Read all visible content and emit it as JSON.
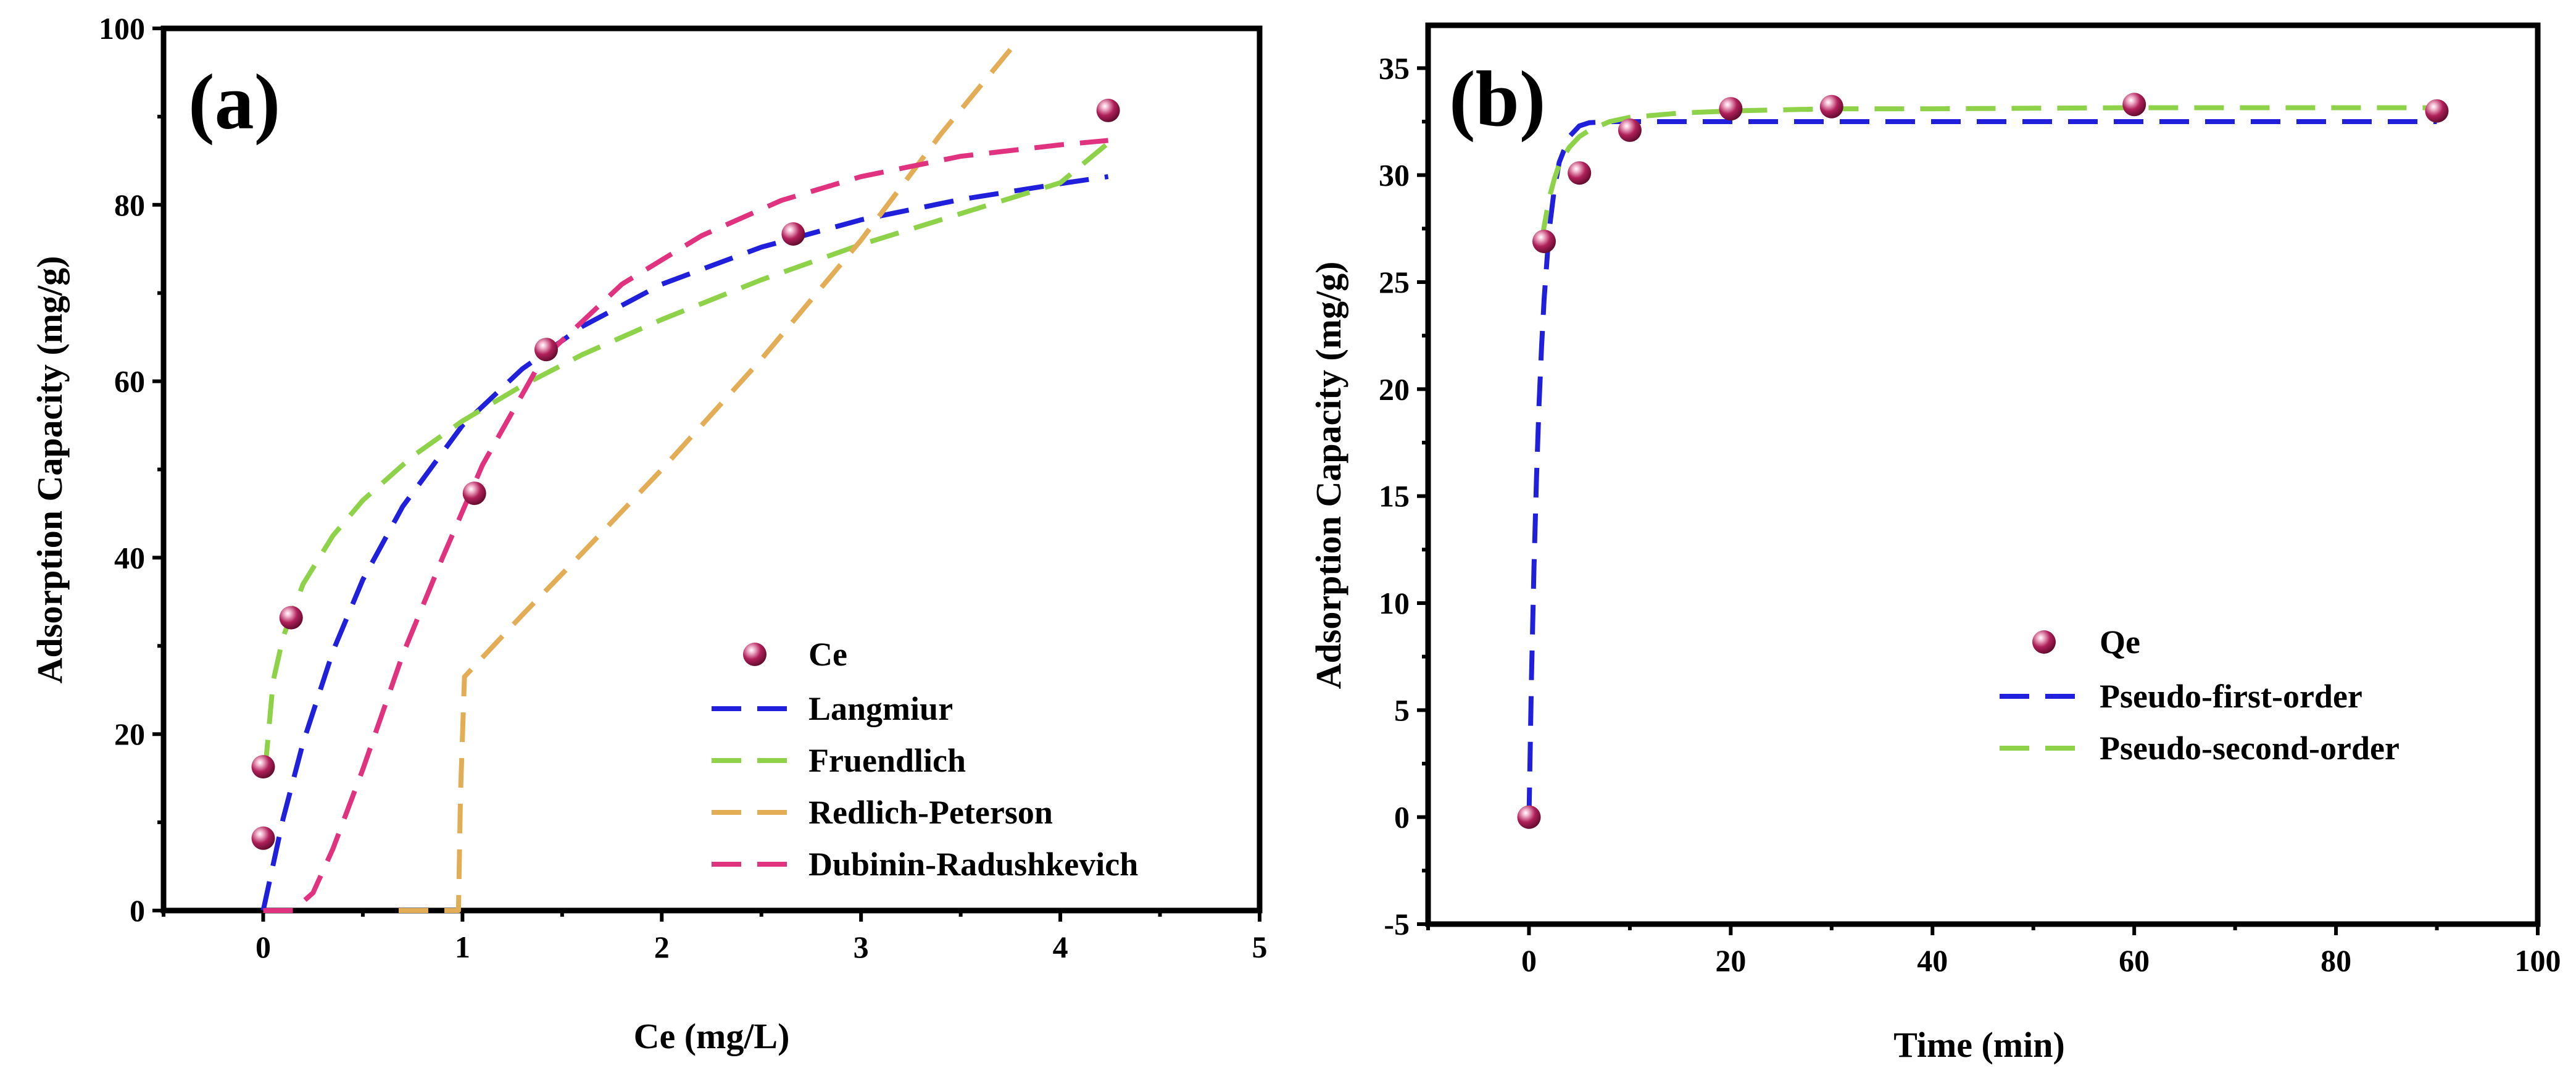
{
  "chart_data": [
    {
      "panel_label": "(a)",
      "type": "scatter",
      "title": "",
      "xlabel": "Ce (mg/L)",
      "ylabel": "Adsorption Capacity (mg/g)",
      "xlim": [
        -0.5,
        5
      ],
      "ylim": [
        0,
        100
      ],
      "x_ticks": [
        0,
        1,
        2,
        3,
        4,
        5
      ],
      "y_ticks": [
        0,
        20,
        40,
        60,
        80,
        100
      ],
      "grid": false,
      "legend_position": "bottom-right",
      "points": {
        "name": "Ce",
        "color": "#9e1b4d",
        "x": [
          0.0,
          0.0,
          0.14,
          1.06,
          1.42,
          2.66,
          4.24
        ],
        "y": [
          8.2,
          16.3,
          33.2,
          47.3,
          63.6,
          76.7,
          90.7
        ]
      },
      "series": [
        {
          "name": "Langmiur",
          "color": "#1f1fdc",
          "x": [
            0.0,
            0.1,
            0.2,
            0.35,
            0.5,
            0.7,
            1.0,
            1.3,
            1.6,
            2.0,
            2.5,
            3.0,
            3.5,
            4.0,
            4.24
          ],
          "y": [
            0.0,
            10.4,
            19.0,
            29.4,
            37.5,
            45.8,
            55.0,
            61.4,
            66.2,
            71.0,
            75.2,
            78.3,
            80.6,
            82.4,
            83.2
          ]
        },
        {
          "name": "Fruendlich",
          "color": "#8ed24a",
          "x": [
            0.01,
            0.05,
            0.1,
            0.2,
            0.35,
            0.5,
            0.75,
            1.0,
            1.3,
            1.6,
            2.0,
            2.5,
            3.0,
            3.5,
            4.0,
            4.24
          ],
          "y": [
            16.0,
            26.0,
            31.0,
            37.0,
            42.5,
            46.5,
            51.5,
            55.5,
            59.5,
            63.0,
            67.0,
            71.5,
            75.5,
            79.0,
            82.5,
            87.0
          ]
        },
        {
          "name": "Redlich-Peterson",
          "color": "#e2ad55",
          "x": [
            0.68,
            0.85,
            0.98,
            0.99,
            1.01,
            1.3,
            1.6,
            2.0,
            2.5,
            3.0,
            3.4,
            3.8
          ],
          "y": [
            0.0,
            0.0,
            0.0,
            13.0,
            26.5,
            33.5,
            40.5,
            50.0,
            62.5,
            76.0,
            88.0,
            99.0
          ]
        },
        {
          "name": "Dubinin-Radushkevich",
          "color": "#e0327e",
          "x": [
            0.0,
            0.15,
            0.25,
            0.35,
            0.5,
            0.7,
            0.9,
            1.1,
            1.4,
            1.8,
            2.2,
            2.6,
            3.0,
            3.5,
            4.0,
            4.24
          ],
          "y": [
            0.0,
            0.0,
            2.0,
            7.0,
            16.0,
            29.0,
            40.0,
            50.5,
            62.5,
            71.0,
            76.5,
            80.5,
            83.2,
            85.5,
            86.8,
            87.3
          ]
        }
      ]
    },
    {
      "panel_label": "(b)",
      "type": "scatter",
      "title": "",
      "xlabel": "Time (min)",
      "ylabel": "Adsorption Capacity (mg/g)",
      "xlim": [
        -10,
        100
      ],
      "ylim": [
        -5,
        37
      ],
      "x_ticks": [
        0,
        20,
        40,
        60,
        80,
        100
      ],
      "y_ticks": [
        -5,
        0,
        5,
        10,
        15,
        20,
        25,
        30,
        35
      ],
      "grid": false,
      "legend_position": "bottom-right",
      "points": {
        "name": "Qe",
        "color": "#9e1b4d",
        "x": [
          0,
          1.5,
          5,
          10,
          20,
          30,
          60,
          90
        ],
        "y": [
          0.0,
          26.9,
          30.1,
          32.1,
          33.1,
          33.2,
          33.3,
          33.0
        ]
      },
      "series": [
        {
          "name": "Pseudo-first-order",
          "color": "#1f1fdc",
          "x": [
            0,
            0.25,
            0.5,
            0.75,
            1.0,
            1.25,
            1.5,
            2.0,
            2.5,
            3.0,
            4.0,
            5.0,
            6.0,
            8.0,
            10.0,
            20.0,
            40.0,
            60.0,
            90.0
          ],
          "y": [
            0.0,
            6.5,
            11.7,
            15.9,
            19.3,
            22.0,
            24.2,
            27.4,
            29.3,
            30.6,
            31.8,
            32.3,
            32.45,
            32.5,
            32.5,
            32.5,
            32.5,
            32.5,
            32.5
          ]
        },
        {
          "name": "Pseudo-second-order",
          "color": "#8ed24a",
          "x": [
            1.3,
            1.5,
            2.0,
            2.5,
            3.0,
            4.0,
            5.0,
            6.0,
            8.0,
            10.0,
            15.0,
            20.0,
            30.0,
            40.0,
            60.0,
            90.0
          ],
          "y": [
            27.0,
            27.6,
            28.9,
            29.8,
            30.5,
            31.3,
            31.8,
            32.1,
            32.5,
            32.7,
            32.9,
            33.0,
            33.1,
            33.1,
            33.15,
            33.15
          ]
        }
      ]
    }
  ]
}
